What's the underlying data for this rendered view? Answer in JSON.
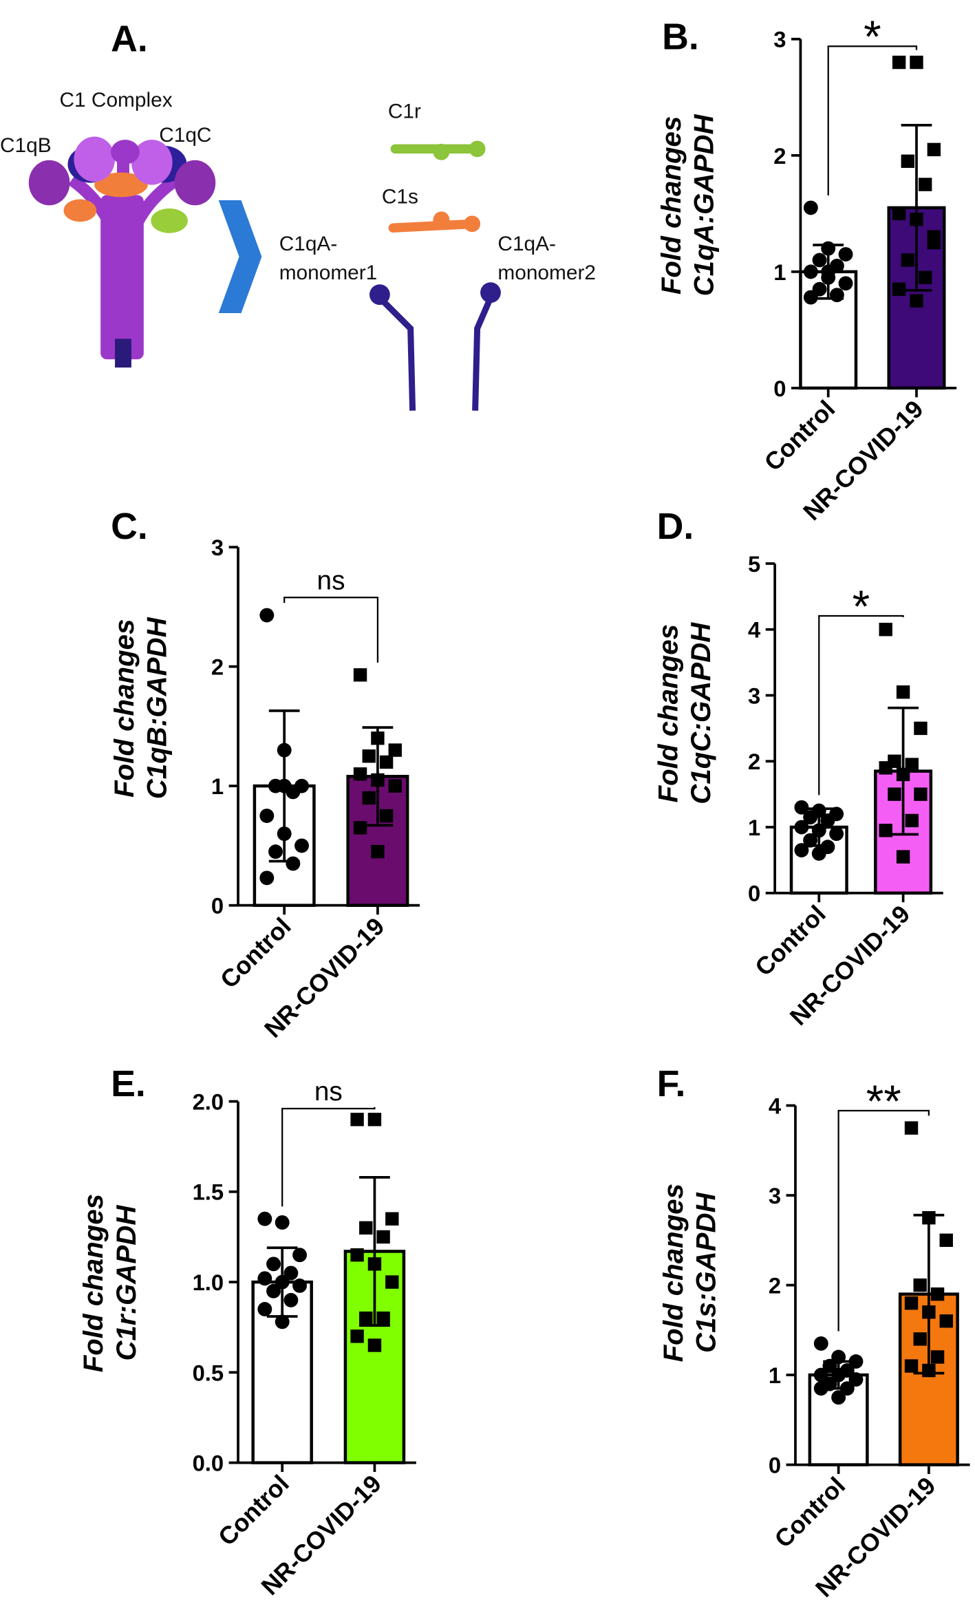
{
  "diagram": {
    "panel": "A.",
    "complex": "C1 Complex",
    "c1qb": "C1qB",
    "c1qc": "C1qC",
    "c1r": "C1r",
    "c1s": "C1s",
    "monomer1": [
      "C1qA-",
      "monomer1"
    ],
    "monomer2": [
      "C1qA-",
      "monomer2"
    ]
  },
  "chart_data": [
    {
      "type": "bar",
      "panel": "B.",
      "ylabel": [
        "Fold changes",
        "C1qA:GAPDH"
      ],
      "categories": [
        "Control",
        "NR-COVID-19"
      ],
      "values": [
        1.0,
        1.55
      ],
      "errors": [
        0.23,
        0.71
      ],
      "colors": [
        "#ffffff",
        "#3d0a78"
      ],
      "markers": [
        "circle",
        "square"
      ],
      "points": [
        [
          1.55,
          1.2,
          1.15,
          1.1,
          1.05,
          1.0,
          0.95,
          0.9,
          0.85,
          0.8,
          0.78,
          1.0
        ],
        [
          2.8,
          2.8,
          2.05,
          1.95,
          1.75,
          1.5,
          1.45,
          1.3,
          1.1,
          0.95,
          0.85,
          0.75,
          1.25
        ]
      ],
      "significance": "*",
      "ylim": [
        0,
        3
      ],
      "yticks": [
        0,
        1,
        2,
        3
      ]
    },
    {
      "type": "bar",
      "panel": "C.",
      "ylabel": [
        "Fold changes",
        "C1qB:GAPDH"
      ],
      "categories": [
        "Control",
        "NR-COVID-19"
      ],
      "values": [
        1.0,
        1.08
      ],
      "errors": [
        0.63,
        0.41
      ],
      "colors": [
        "#ffffff",
        "#6a0c6e"
      ],
      "markers": [
        "circle",
        "square"
      ],
      "points": [
        [
          2.43,
          1.3,
          1.0,
          1.0,
          0.95,
          0.75,
          0.6,
          0.5,
          0.45,
          0.35,
          0.23,
          1.0
        ],
        [
          1.93,
          1.4,
          1.3,
          1.25,
          1.2,
          1.1,
          1.05,
          1.0,
          0.9,
          0.75,
          0.65,
          0.45
        ]
      ],
      "significance": "ns",
      "ylim": [
        0,
        3
      ],
      "yticks": [
        0,
        1,
        2,
        3
      ]
    },
    {
      "type": "bar",
      "panel": "D.",
      "ylabel": [
        "Fold changes",
        "C1qC:GAPDH"
      ],
      "categories": [
        "Control",
        "NR-COVID-19"
      ],
      "values": [
        1.0,
        1.85
      ],
      "errors": [
        0.28,
        0.96
      ],
      "colors": [
        "#ffffff",
        "#f55ef5"
      ],
      "markers": [
        "circle",
        "square"
      ],
      "points": [
        [
          1.3,
          1.25,
          1.2,
          1.15,
          1.1,
          1.0,
          0.95,
          0.9,
          0.8,
          0.7,
          0.65,
          0.6
        ],
        [
          4.0,
          3.05,
          2.5,
          2.0,
          1.95,
          1.9,
          1.8,
          1.5,
          1.5,
          1.1,
          0.95,
          0.55
        ]
      ],
      "significance": "*",
      "ylim": [
        0,
        5
      ],
      "yticks": [
        0,
        1,
        2,
        3,
        4,
        5
      ]
    },
    {
      "type": "bar",
      "panel": "E.",
      "ylabel": [
        "Fold changes",
        "C1r:GAPDH"
      ],
      "categories": [
        "Control",
        "NR-COVID-19"
      ],
      "values": [
        1.0,
        1.17
      ],
      "errors": [
        0.19,
        0.41
      ],
      "colors": [
        "#ffffff",
        "#7fff00"
      ],
      "markers": [
        "circle",
        "square"
      ],
      "points": [
        [
          1.35,
          1.33,
          1.15,
          1.1,
          1.05,
          1.02,
          1.0,
          0.98,
          0.95,
          0.9,
          0.85,
          0.78
        ],
        [
          1.9,
          1.9,
          1.35,
          1.3,
          1.25,
          1.15,
          1.1,
          1.0,
          0.8,
          0.8,
          0.7,
          0.65
        ]
      ],
      "significance": "ns",
      "ylim": [
        0,
        2
      ],
      "yticks": [
        {
          "value": 0,
          "label": "0.0"
        },
        0.5,
        {
          "value": 1,
          "label": "1.0"
        },
        1.5,
        {
          "value": 2,
          "label": "2.0"
        }
      ]
    },
    {
      "type": "bar",
      "panel": "F.",
      "ylabel": [
        "Fold changes",
        "C1s:GAPDH"
      ],
      "categories": [
        "Control",
        "NR-COVID-19"
      ],
      "values": [
        1.0,
        1.9
      ],
      "errors": [
        0.15,
        0.88
      ],
      "colors": [
        "#ffffff",
        "#f5780f"
      ],
      "markers": [
        "circle",
        "square"
      ],
      "points": [
        [
          1.35,
          1.2,
          1.15,
          1.1,
          1.05,
          1.0,
          1.0,
          0.95,
          0.9,
          0.85,
          0.85,
          0.75
        ],
        [
          3.75,
          2.75,
          2.5,
          2.0,
          1.9,
          1.8,
          1.7,
          1.6,
          1.4,
          1.2,
          1.1,
          1.05
        ]
      ],
      "significance": "**",
      "ylim": [
        0,
        4
      ],
      "yticks": [
        0,
        1,
        2,
        3,
        4
      ]
    }
  ]
}
